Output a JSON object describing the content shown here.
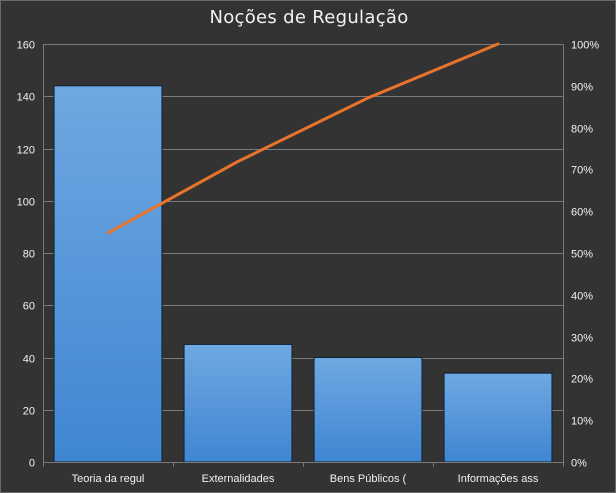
{
  "chart_data": {
    "type": "bar",
    "title": "Noções de Regulação",
    "categories": [
      "Teoria da regul",
      "Externalidades",
      "Bens Públicos (",
      "Informações ass"
    ],
    "series": [
      {
        "type": "bar",
        "axis": "left",
        "values": [
          144,
          45,
          40,
          34
        ]
      },
      {
        "type": "line",
        "axis": "right",
        "values": [
          0.548,
          0.719,
          0.871,
          1.0
        ]
      }
    ],
    "ylim": [
      0,
      160
    ],
    "yticks": [
      "0",
      "20",
      "40",
      "60",
      "80",
      "100",
      "120",
      "140",
      "160"
    ],
    "y2lim": [
      0,
      1
    ],
    "y2ticks": [
      "0%",
      "10%",
      "20%",
      "30%",
      "40%",
      "50%",
      "60%",
      "70%",
      "80%",
      "90%",
      "100%"
    ],
    "grid": true,
    "colors": {
      "bar": "#4a90d9",
      "line": "#e8742c",
      "background": "#333333",
      "grid": "#7a7a7a",
      "text": "#f2f2f2"
    }
  }
}
